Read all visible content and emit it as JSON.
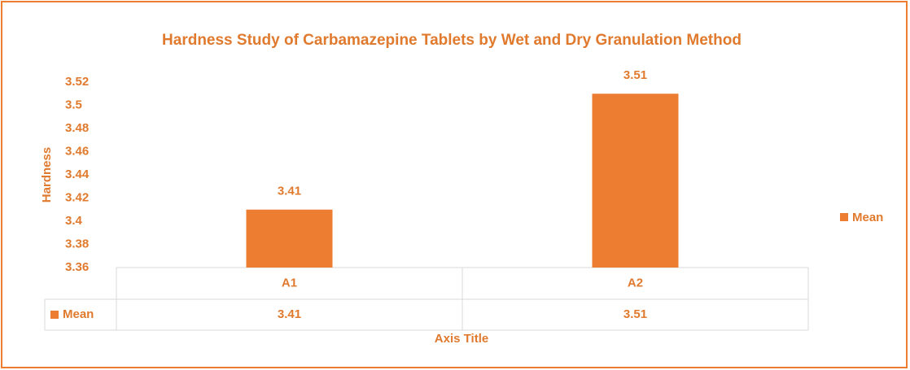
{
  "chart_data": {
    "type": "bar",
    "title": "Hardness Study of Carbamazepine Tablets by Wet and Dry Granulation Method",
    "x_label": "Axis Title",
    "y_label": "Hardness",
    "categories": [
      "A1",
      "A2"
    ],
    "series": [
      {
        "name": "Mean",
        "color": "#ed7d31",
        "values": [
          3.41,
          3.51
        ]
      }
    ],
    "ylim": [
      3.36,
      3.52
    ],
    "yticks": [
      3.36,
      3.38,
      3.4,
      3.42,
      3.44,
      3.46,
      3.48,
      3.5,
      3.52
    ],
    "grid": false,
    "legend": "right",
    "data_table": true
  }
}
